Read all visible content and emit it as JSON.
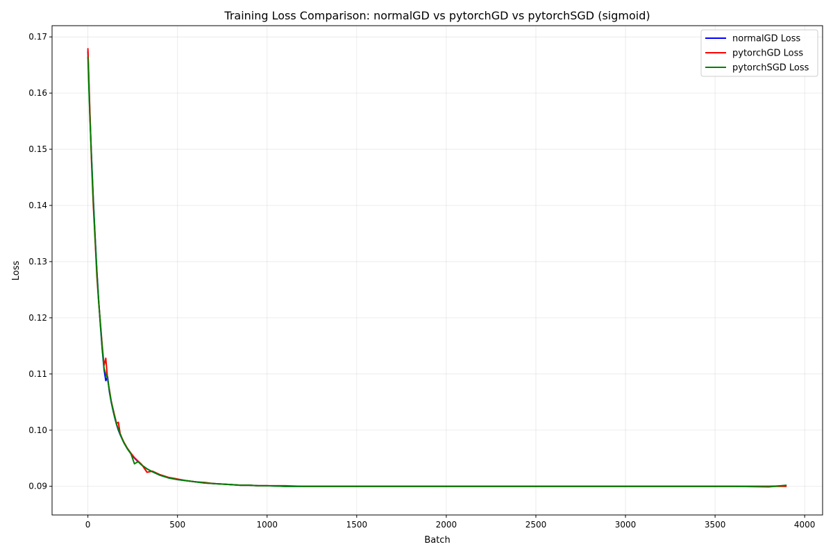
{
  "chart_data": {
    "type": "line",
    "title": "Training Loss Comparison: normalGD vs pytorchGD vs pytorchSGD (sigmoid)",
    "xlabel": "Batch",
    "ylabel": "Loss",
    "xlim": [
      -200,
      4100
    ],
    "ylim": [
      0.0849,
      0.172
    ],
    "xticks": [
      0,
      500,
      1000,
      1500,
      2000,
      2500,
      3000,
      3500,
      4000
    ],
    "yticks": [
      0.09,
      0.1,
      0.11,
      0.12,
      0.13,
      0.14,
      0.15,
      0.16,
      0.17
    ],
    "xtick_labels": [
      "0",
      "500",
      "1000",
      "1500",
      "2000",
      "2500",
      "3000",
      "3500",
      "4000"
    ],
    "ytick_labels": [
      "0.09",
      "0.10",
      "0.11",
      "0.12",
      "0.13",
      "0.14",
      "0.15",
      "0.16",
      "0.17"
    ],
    "grid": true,
    "legend_position": "top-right",
    "series": [
      {
        "name": "normalGD Loss",
        "color": "#0000ff",
        "x": [
          0,
          10,
          20,
          30,
          40,
          50,
          60,
          70,
          80,
          90,
          100,
          110,
          120,
          130,
          140,
          150,
          160,
          170,
          180,
          190,
          200,
          220,
          240,
          260,
          280,
          300,
          330,
          360,
          400,
          450,
          500,
          550,
          600,
          650,
          700,
          750,
          800,
          850,
          900,
          950,
          1000,
          1100,
          1200,
          1300,
          1400,
          1500,
          1600,
          1700,
          1800,
          1900,
          2000,
          2200,
          2400,
          2600,
          2800,
          3000,
          3200,
          3400,
          3600,
          3800,
          3899
        ],
        "values": [
          0.1675,
          0.1572,
          0.1488,
          0.1412,
          0.1345,
          0.1285,
          0.1232,
          0.1185,
          0.1143,
          0.1108,
          0.1088,
          0.1095,
          0.1068,
          0.105,
          0.1035,
          0.1022,
          0.101,
          0.1,
          0.0992,
          0.0985,
          0.0978,
          0.0967,
          0.0958,
          0.095,
          0.0944,
          0.0938,
          0.0931,
          0.0926,
          0.092,
          0.0915,
          0.0912,
          0.091,
          0.0908,
          0.0906,
          0.0905,
          0.0904,
          0.0903,
          0.0902,
          0.0902,
          0.0901,
          0.0901,
          0.09,
          0.09,
          0.09,
          0.09,
          0.09,
          0.09,
          0.09,
          0.09,
          0.09,
          0.09,
          0.09,
          0.09,
          0.09,
          0.09,
          0.09,
          0.09,
          0.09,
          0.09,
          0.09,
          0.0901
        ]
      },
      {
        "name": "pytorchGD Loss",
        "color": "#ff0000",
        "x": [
          0,
          10,
          20,
          30,
          40,
          50,
          60,
          70,
          80,
          90,
          100,
          110,
          120,
          130,
          140,
          150,
          160,
          170,
          180,
          190,
          200,
          220,
          240,
          260,
          280,
          300,
          330,
          360,
          400,
          450,
          500,
          550,
          600,
          650,
          700,
          750,
          800,
          850,
          900,
          950,
          1000,
          1100,
          1200,
          1300,
          1400,
          1500,
          1600,
          1700,
          1800,
          1900,
          2000,
          2200,
          2400,
          2600,
          2800,
          3000,
          3200,
          3400,
          3600,
          3800,
          3899
        ],
        "values": [
          0.168,
          0.158,
          0.1478,
          0.14,
          0.1338,
          0.1275,
          0.1228,
          0.119,
          0.115,
          0.1115,
          0.1128,
          0.109,
          0.1072,
          0.1052,
          0.1038,
          0.1025,
          0.1012,
          0.1014,
          0.0994,
          0.0986,
          0.0979,
          0.0968,
          0.0959,
          0.0951,
          0.0945,
          0.0939,
          0.0925,
          0.0927,
          0.0921,
          0.0916,
          0.0913,
          0.091,
          0.0908,
          0.0907,
          0.0905,
          0.0904,
          0.0903,
          0.0902,
          0.0902,
          0.0901,
          0.0901,
          0.0901,
          0.09,
          0.09,
          0.09,
          0.09,
          0.09,
          0.09,
          0.09,
          0.09,
          0.09,
          0.09,
          0.09,
          0.09,
          0.09,
          0.09,
          0.09,
          0.09,
          0.09,
          0.09,
          0.09
        ]
      },
      {
        "name": "pytorchSGD Loss",
        "color": "#008000",
        "x": [
          0,
          10,
          20,
          30,
          40,
          50,
          60,
          70,
          80,
          90,
          100,
          110,
          120,
          130,
          140,
          150,
          160,
          170,
          180,
          190,
          200,
          220,
          240,
          260,
          280,
          300,
          330,
          360,
          400,
          450,
          500,
          550,
          600,
          650,
          700,
          750,
          800,
          850,
          900,
          950,
          1000,
          1100,
          1200,
          1300,
          1400,
          1500,
          1600,
          1700,
          1800,
          1900,
          2000,
          2200,
          2400,
          2600,
          2800,
          3000,
          3200,
          3400,
          3600,
          3800,
          3899
        ],
        "values": [
          0.1665,
          0.1565,
          0.1485,
          0.1408,
          0.1342,
          0.1282,
          0.123,
          0.1188,
          0.1146,
          0.111,
          0.11,
          0.1092,
          0.107,
          0.1051,
          0.1036,
          0.1023,
          0.1011,
          0.1002,
          0.0993,
          0.0985,
          0.0978,
          0.0967,
          0.0958,
          0.094,
          0.0944,
          0.0938,
          0.0931,
          0.0926,
          0.092,
          0.0915,
          0.0912,
          0.091,
          0.0908,
          0.0906,
          0.0905,
          0.0904,
          0.0903,
          0.0902,
          0.0902,
          0.0901,
          0.0901,
          0.09,
          0.09,
          0.09,
          0.09,
          0.09,
          0.09,
          0.09,
          0.09,
          0.09,
          0.09,
          0.09,
          0.09,
          0.09,
          0.09,
          0.09,
          0.09,
          0.09,
          0.09,
          0.0899,
          0.0902
        ]
      }
    ]
  }
}
